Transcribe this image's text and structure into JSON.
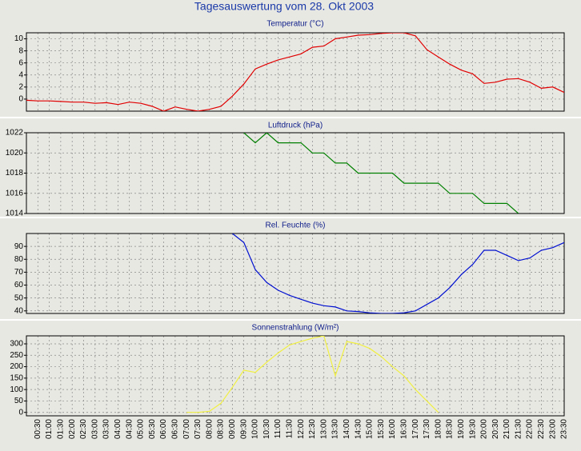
{
  "title": "Tagesauswertung vom 28. Okt 2003",
  "chart_data": [
    {
      "type": "line",
      "title": "Temperatur (°C)",
      "color": "#e00000",
      "values": [
        -0.2,
        -0.3,
        -0.3,
        -0.4,
        -0.5,
        -0.5,
        -0.7,
        -0.6,
        -0.9,
        -0.5,
        -0.7,
        -1.2,
        -2.0,
        -1.3,
        -1.7,
        -2.0,
        -1.7,
        -1.2,
        0.5,
        2.5,
        5.0,
        5.8,
        6.5,
        7.0,
        7.5,
        8.6,
        8.8,
        10.0,
        10.3,
        10.6,
        10.7,
        10.9,
        11.0,
        11.0,
        10.5,
        8.2,
        7.0,
        5.8,
        4.8,
        4.2,
        2.6,
        2.8,
        3.3,
        3.4,
        2.8,
        1.8,
        2.0,
        1.1
      ],
      "ylim": [
        -2,
        11
      ],
      "yticks": [
        0,
        2,
        4,
        6,
        8,
        10
      ],
      "grid": true
    },
    {
      "type": "line",
      "title": "Luftdruck (hPa)",
      "color": "#008000",
      "values": [
        null,
        null,
        null,
        null,
        null,
        null,
        null,
        null,
        null,
        null,
        null,
        null,
        null,
        null,
        null,
        null,
        null,
        null,
        null,
        1022,
        1021,
        1022,
        1021,
        1021,
        1021,
        1020,
        1020,
        1019,
        1019,
        1018,
        1018,
        1018,
        1018,
        1017,
        1017,
        1017,
        1017,
        1016,
        1016,
        1016,
        1015,
        1015,
        1015,
        1014,
        null,
        null,
        null,
        null
      ],
      "ylim": [
        1014,
        1022
      ],
      "yticks": [
        1014,
        1016,
        1018,
        1020,
        1022
      ],
      "grid": true
    },
    {
      "type": "line",
      "title": "Rel. Feuchte (%)",
      "color": "#0010d0",
      "values": [
        null,
        null,
        null,
        null,
        null,
        null,
        null,
        null,
        null,
        null,
        null,
        null,
        null,
        null,
        null,
        null,
        null,
        null,
        100,
        93,
        72,
        62,
        56,
        52,
        49,
        46,
        44,
        43,
        40,
        39.5,
        38.5,
        38,
        38,
        38.5,
        40,
        45,
        50,
        58,
        68,
        76,
        87,
        87,
        83,
        79,
        81,
        87,
        89,
        93
      ],
      "ylim": [
        38,
        100
      ],
      "yticks": [
        40,
        50,
        60,
        70,
        80,
        90
      ],
      "grid": true
    },
    {
      "type": "line",
      "title": "Sonnenstrahlung (W/m²)",
      "color": "#f0f040",
      "categories": [
        null,
        "00:30",
        "01:00",
        "01:30",
        "02:00",
        "02:30",
        "03:00",
        "03:30",
        "04:00",
        "04:30",
        "05:00",
        "05:30",
        "06:00",
        "06:30",
        "07:00",
        "07:30",
        "08:00",
        "08:30",
        "09:00",
        "09:30",
        "10:00",
        "10:30",
        "11:00",
        "11:30",
        "12:00",
        "12:30",
        "13:00",
        "13:30",
        "14:00",
        "14:30",
        "15:00",
        "15:30",
        "16:00",
        "16:30",
        "17:00",
        "17:30",
        "18:00",
        "18:30",
        "19:00",
        "19:30",
        "20:00",
        "20:30",
        "21:00",
        "21:30",
        "22:00",
        "22:30",
        "23:00",
        "23:30"
      ],
      "values": [
        null,
        null,
        null,
        null,
        null,
        null,
        null,
        null,
        null,
        null,
        null,
        null,
        null,
        null,
        0,
        0,
        5,
        40,
        110,
        185,
        175,
        220,
        260,
        295,
        310,
        325,
        335,
        160,
        310,
        300,
        280,
        245,
        200,
        160,
        100,
        50,
        0,
        null,
        null,
        null,
        null,
        null,
        null,
        null,
        null,
        null,
        null,
        null
      ],
      "ylim": [
        -15,
        335
      ],
      "yticks": [
        0,
        50,
        100,
        150,
        200,
        250,
        300
      ],
      "grid": true
    }
  ]
}
